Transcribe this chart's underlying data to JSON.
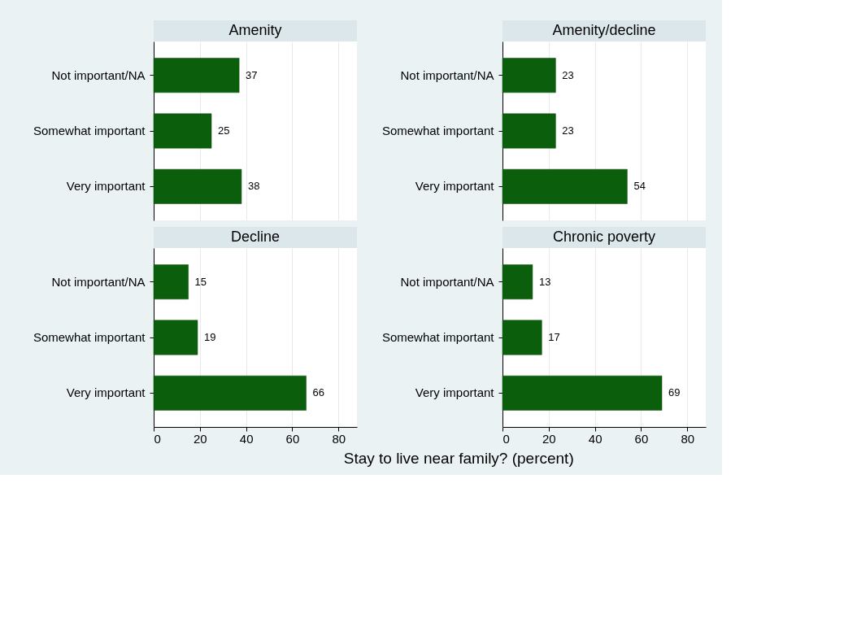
{
  "chart_data": [
    {
      "type": "bar",
      "orientation": "horizontal",
      "title": "Amenity",
      "categories": [
        "Not important/NA",
        "Somewhat important",
        "Very important"
      ],
      "values": [
        37,
        25,
        38
      ],
      "color": "#0b5e0b",
      "data_labels": true,
      "xlim": [
        0,
        88
      ],
      "xticks": [
        0,
        20,
        40,
        60,
        80
      ],
      "grid": "x",
      "tick_labels": "y"
    },
    {
      "type": "bar",
      "orientation": "horizontal",
      "title": "Amenity/decline",
      "categories": [
        "Not important/NA",
        "Somewhat important",
        "Very important"
      ],
      "values": [
        23,
        23,
        54
      ],
      "color": "#0b5e0b",
      "data_labels": true,
      "xlim": [
        0,
        88
      ],
      "xticks": [
        0,
        20,
        40,
        60,
        80
      ],
      "grid": "x",
      "tick_labels": "y"
    },
    {
      "type": "bar",
      "orientation": "horizontal",
      "title": "Decline",
      "categories": [
        "Not important/NA",
        "Somewhat important",
        "Very important"
      ],
      "values": [
        15,
        19,
        66
      ],
      "color": "#0b5e0b",
      "data_labels": true,
      "xlim": [
        0,
        88
      ],
      "xticks": [
        0,
        20,
        40,
        60,
        80
      ],
      "grid": "x",
      "xlabel": "Stay to live near family?  (percent)"
    },
    {
      "type": "bar",
      "orientation": "horizontal",
      "title": "Chronic poverty",
      "categories": [
        "Not important/NA",
        "Somewhat important",
        "Very important"
      ],
      "values": [
        13,
        17,
        69
      ],
      "color": "#0b5e0b",
      "data_labels": true,
      "xlim": [
        0,
        88
      ],
      "xticks": [
        0,
        20,
        40,
        60,
        80
      ],
      "grid": "x"
    }
  ]
}
